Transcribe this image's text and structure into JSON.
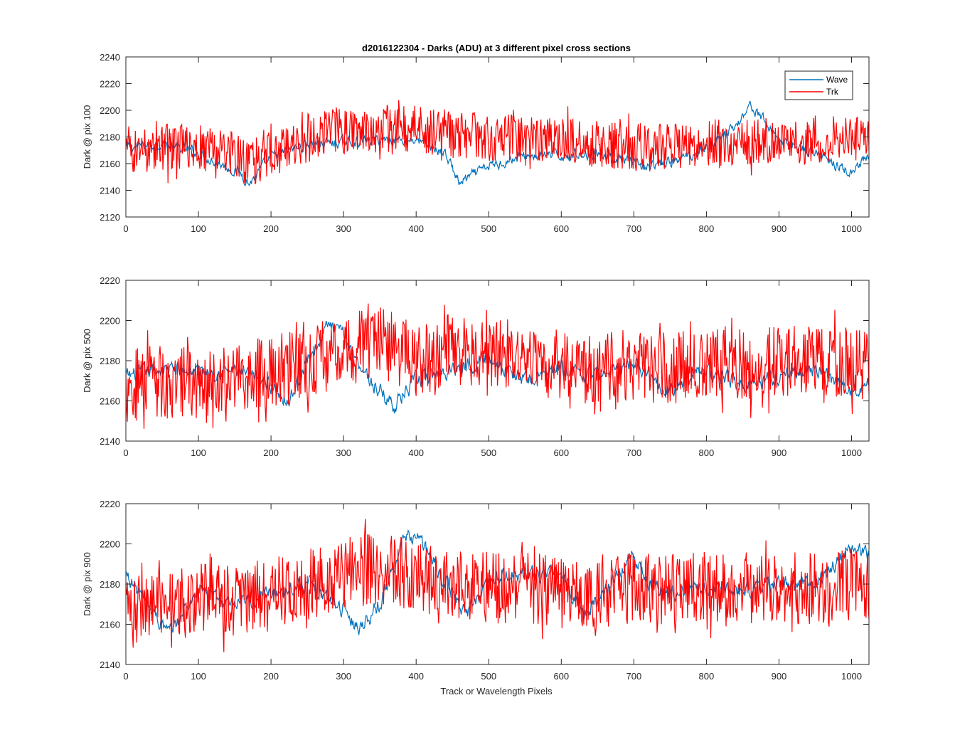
{
  "figure": {
    "title": "d2016122304 - Darks (ADU) at 3 different pixel cross sections",
    "xlabel": "Track or Wavelength Pixels"
  },
  "legend": {
    "entries": [
      "Wave",
      "Trk"
    ],
    "placement": "top-right"
  },
  "colors": {
    "wave": "#0072BD",
    "trk": "#FF0000",
    "axis": "#262626"
  },
  "chart_data": [
    {
      "type": "line",
      "ylabel": "Dark @ pix 100",
      "xlim": [
        0,
        1024
      ],
      "ylim": [
        2120,
        2240
      ],
      "xticks": [
        0,
        100,
        200,
        300,
        400,
        500,
        600,
        700,
        800,
        900,
        1000
      ],
      "yticks": [
        2120,
        2140,
        2160,
        2180,
        2200,
        2220,
        2240
      ],
      "series": [
        {
          "name": "Wave",
          "x": [
            0,
            50,
            100,
            130,
            160,
            170,
            200,
            250,
            300,
            350,
            400,
            420,
            440,
            460,
            480,
            500,
            550,
            600,
            650,
            700,
            720,
            760,
            800,
            840,
            860,
            880,
            900,
            950,
            1000,
            1024
          ],
          "y": [
            2172,
            2175,
            2168,
            2160,
            2152,
            2145,
            2165,
            2175,
            2176,
            2178,
            2178,
            2172,
            2168,
            2145,
            2152,
            2158,
            2166,
            2166,
            2168,
            2160,
            2157,
            2162,
            2172,
            2188,
            2204,
            2192,
            2178,
            2168,
            2152,
            2165
          ]
        },
        {
          "name": "Trk",
          "x": [
            0,
            50,
            100,
            150,
            170,
            200,
            250,
            270,
            300,
            350,
            400,
            450,
            500,
            550,
            600,
            650,
            700,
            750,
            800,
            850,
            900,
            950,
            1000,
            1024
          ],
          "y": [
            2170,
            2172,
            2173,
            2168,
            2158,
            2168,
            2178,
            2185,
            2185,
            2186,
            2186,
            2182,
            2180,
            2179,
            2177,
            2175,
            2172,
            2172,
            2175,
            2177,
            2178,
            2178,
            2178,
            2181
          ]
        }
      ]
    },
    {
      "type": "line",
      "ylabel": "Dark @ pix 500",
      "xlim": [
        0,
        1024
      ],
      "ylim": [
        2140,
        2220
      ],
      "xticks": [
        0,
        100,
        200,
        300,
        400,
        500,
        600,
        700,
        800,
        900,
        1000
      ],
      "yticks": [
        2140,
        2160,
        2180,
        2200,
        2220
      ],
      "series": [
        {
          "name": "Wave",
          "x": [
            0,
            50,
            100,
            150,
            200,
            225,
            250,
            280,
            300,
            340,
            370,
            400,
            450,
            500,
            550,
            600,
            650,
            700,
            750,
            800,
            850,
            900,
            950,
            1000,
            1024
          ],
          "y": [
            2172,
            2176,
            2175,
            2175,
            2168,
            2160,
            2180,
            2198,
            2192,
            2168,
            2158,
            2170,
            2176,
            2182,
            2170,
            2176,
            2172,
            2180,
            2165,
            2176,
            2168,
            2172,
            2176,
            2164,
            2170
          ]
        },
        {
          "name": "Trk",
          "x": [
            0,
            50,
            100,
            150,
            200,
            250,
            300,
            350,
            400,
            450,
            500,
            550,
            600,
            650,
            700,
            750,
            800,
            850,
            900,
            950,
            1000,
            1024
          ],
          "y": [
            2168,
            2170,
            2168,
            2172,
            2174,
            2180,
            2185,
            2190,
            2180,
            2186,
            2184,
            2182,
            2178,
            2176,
            2178,
            2176,
            2180,
            2178,
            2180,
            2180,
            2180,
            2178
          ]
        }
      ]
    },
    {
      "type": "line",
      "ylabel": "Dark @ pix 900",
      "xlim": [
        0,
        1024
      ],
      "ylim": [
        2140,
        2220
      ],
      "xticks": [
        0,
        100,
        200,
        300,
        400,
        500,
        600,
        700,
        800,
        900,
        1000
      ],
      "yticks": [
        2140,
        2160,
        2180,
        2200,
        2220
      ],
      "series": [
        {
          "name": "Wave",
          "x": [
            0,
            30,
            60,
            100,
            150,
            200,
            250,
            300,
            320,
            350,
            380,
            400,
            450,
            470,
            500,
            550,
            600,
            630,
            650,
            700,
            720,
            750,
            800,
            850,
            900,
            950,
            1000,
            1024
          ],
          "y": [
            2185,
            2170,
            2155,
            2178,
            2168,
            2176,
            2180,
            2168,
            2158,
            2170,
            2200,
            2205,
            2175,
            2165,
            2182,
            2185,
            2185,
            2165,
            2172,
            2195,
            2180,
            2176,
            2178,
            2178,
            2180,
            2180,
            2198,
            2195
          ]
        },
        {
          "name": "Trk",
          "x": [
            0,
            50,
            100,
            150,
            200,
            250,
            300,
            350,
            400,
            450,
            500,
            550,
            600,
            650,
            700,
            750,
            800,
            850,
            900,
            950,
            1000,
            1024
          ],
          "y": [
            2170,
            2168,
            2172,
            2172,
            2176,
            2180,
            2186,
            2188,
            2184,
            2180,
            2178,
            2178,
            2176,
            2176,
            2178,
            2178,
            2178,
            2178,
            2178,
            2178,
            2180,
            2180
          ]
        }
      ]
    }
  ]
}
